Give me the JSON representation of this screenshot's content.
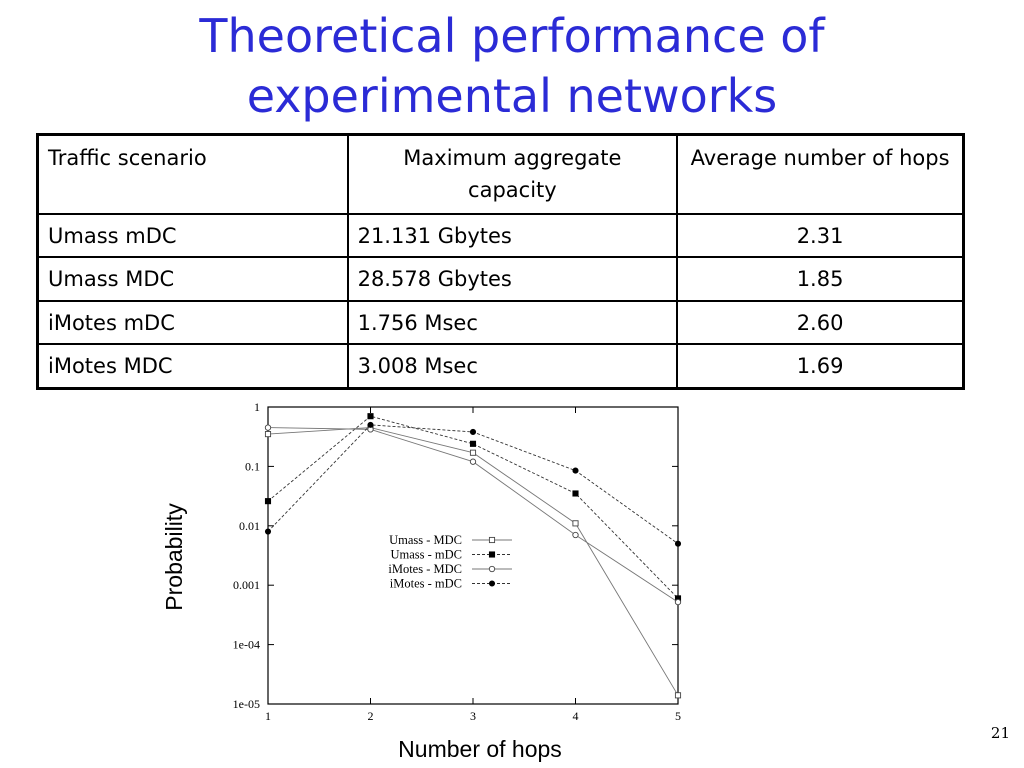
{
  "slide": {
    "title_line1": "Theoretical performance of",
    "title_line2": "experimental networks",
    "page_number": "21"
  },
  "table": {
    "headers": [
      "Traffic scenario",
      "Maximum aggregate capacity",
      "Average number of hops"
    ],
    "rows": [
      [
        "Umass mDC",
        "21.131 Gbytes",
        "2.31"
      ],
      [
        "Umass MDC",
        "28.578 Gbytes",
        "1.85"
      ],
      [
        "iMotes mDC",
        "1.756 Msec",
        "2.60"
      ],
      [
        "iMotes MDC",
        "3.008 Msec",
        "1.69"
      ]
    ]
  },
  "chart_data": {
    "type": "line",
    "title": "",
    "xlabel": "Number of hops",
    "ylabel": "Probability",
    "yscale": "log",
    "xlim": [
      1,
      5
    ],
    "ylim": [
      1e-05,
      1
    ],
    "x": [
      1,
      2,
      3,
      4,
      5
    ],
    "x_ticks": [
      "1",
      "2",
      "3",
      "4",
      "5"
    ],
    "y_ticks": [
      {
        "value": 1,
        "label": "1"
      },
      {
        "value": 0.1,
        "label": "0.1"
      },
      {
        "value": 0.01,
        "label": "0.01"
      },
      {
        "value": 0.001,
        "label": "0.001"
      },
      {
        "value": 0.0001,
        "label": "1e-04"
      },
      {
        "value": 1e-05,
        "label": "1e-05"
      }
    ],
    "grid": false,
    "legend_position": "center",
    "series": [
      {
        "name": "Umass - MDC",
        "marker": "open-square",
        "line": "solid",
        "values": [
          0.35,
          0.45,
          0.17,
          0.011,
          1.4e-05
        ]
      },
      {
        "name": "Umass - mDC",
        "marker": "filled-square",
        "line": "dashed",
        "values": [
          0.026,
          0.7,
          0.24,
          0.035,
          0.0006
        ]
      },
      {
        "name": "iMotes - MDC",
        "marker": "open-circle",
        "line": "solid",
        "values": [
          0.45,
          0.42,
          0.12,
          0.007,
          0.00052
        ]
      },
      {
        "name": "iMotes - mDC",
        "marker": "filled-circle",
        "line": "dashed",
        "values": [
          0.008,
          0.5,
          0.38,
          0.085,
          0.005
        ]
      }
    ]
  }
}
